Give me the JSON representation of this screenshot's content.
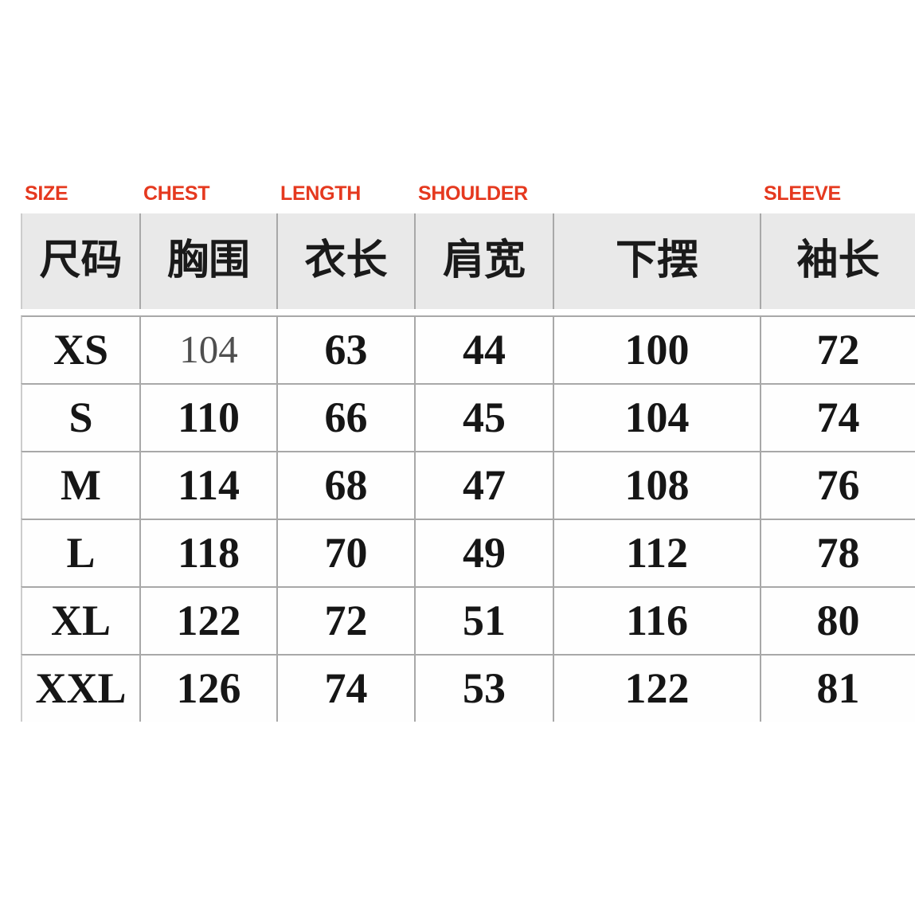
{
  "meta": {
    "accent_color": "#e5391f",
    "header_bg_color": "#e9e9e9",
    "grid_line_color": "#a8a8a8",
    "unit_note": ""
  },
  "column_labels_en": [
    "SIZE",
    "CHEST",
    "LENGTH",
    "SHOULDER",
    "",
    "SLEEVE"
  ],
  "column_headers_zh": [
    "尺码",
    "胸围",
    "衣长",
    "肩宽",
    "下摆",
    "袖长"
  ],
  "rows": [
    {
      "size": "XS",
      "chest": "104",
      "length": "63",
      "shoulder": "44",
      "hem": "100",
      "sleeve": "72"
    },
    {
      "size": "S",
      "chest": "110",
      "length": "66",
      "shoulder": "45",
      "hem": "104",
      "sleeve": "74"
    },
    {
      "size": "M",
      "chest": "114",
      "length": "68",
      "shoulder": "47",
      "hem": "108",
      "sleeve": "76"
    },
    {
      "size": "L",
      "chest": "118",
      "length": "70",
      "shoulder": "49",
      "hem": "112",
      "sleeve": "78"
    },
    {
      "size": "XL",
      "chest": "122",
      "length": "72",
      "shoulder": "51",
      "hem": "116",
      "sleeve": "80"
    },
    {
      "size": "XXL",
      "chest": "126",
      "length": "74",
      "shoulder": "53",
      "hem": "122",
      "sleeve": "81"
    }
  ]
}
